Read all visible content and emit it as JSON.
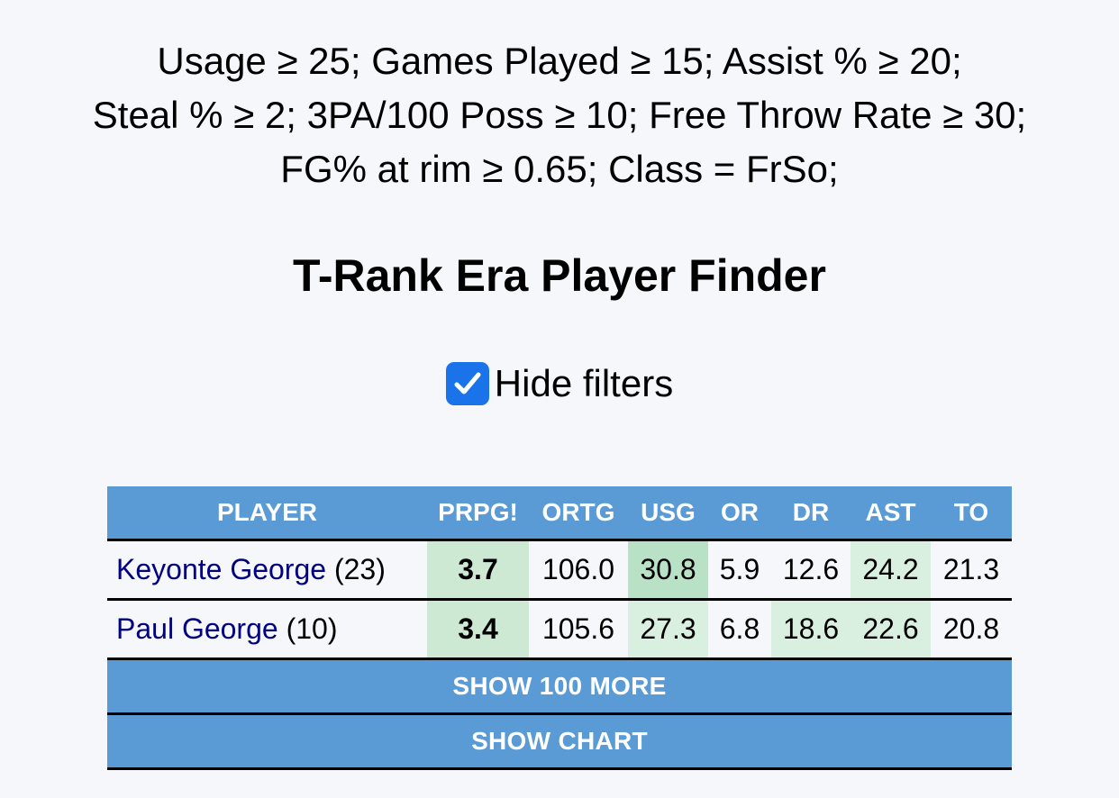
{
  "filters": {
    "line1": "Usage ≥ 25; Games Played ≥ 15; Assist % ≥ 20;",
    "line2": "Steal % ≥ 2; 3PA/100 Poss ≥ 10; Free Throw Rate ≥ 30;",
    "line3": "FG% at rim ≥ 0.65; Class = FrSo;"
  },
  "page_title": "T-Rank Era Player Finder",
  "hide_filters": {
    "label": "Hide filters",
    "checked": true
  },
  "table": {
    "columns": [
      "PLAYER",
      "PRPG!",
      "ORTG",
      "USG",
      "OR",
      "DR",
      "AST",
      "TO"
    ],
    "rows": [
      {
        "name": "Keyonte George",
        "number": "(23)",
        "prpg": "3.7",
        "ortg": "106.0",
        "usg": "30.8",
        "or": "5.9",
        "dr": "12.6",
        "ast": "24.2",
        "to": "21.3"
      },
      {
        "name": "Paul George",
        "number": "(10)",
        "prpg": "3.4",
        "ortg": "105.6",
        "usg": "27.3",
        "or": "6.8",
        "dr": "18.6",
        "ast": "22.6",
        "to": "20.8"
      }
    ]
  },
  "buttons": {
    "show_more": "SHOW 100 MORE",
    "show_chart": "SHOW CHART"
  },
  "colors": {
    "header_blue": "#5b9bd5",
    "checkbox_blue": "#1a73e8",
    "player_link": "#000080",
    "highlight_green": "#b9e1c5"
  }
}
